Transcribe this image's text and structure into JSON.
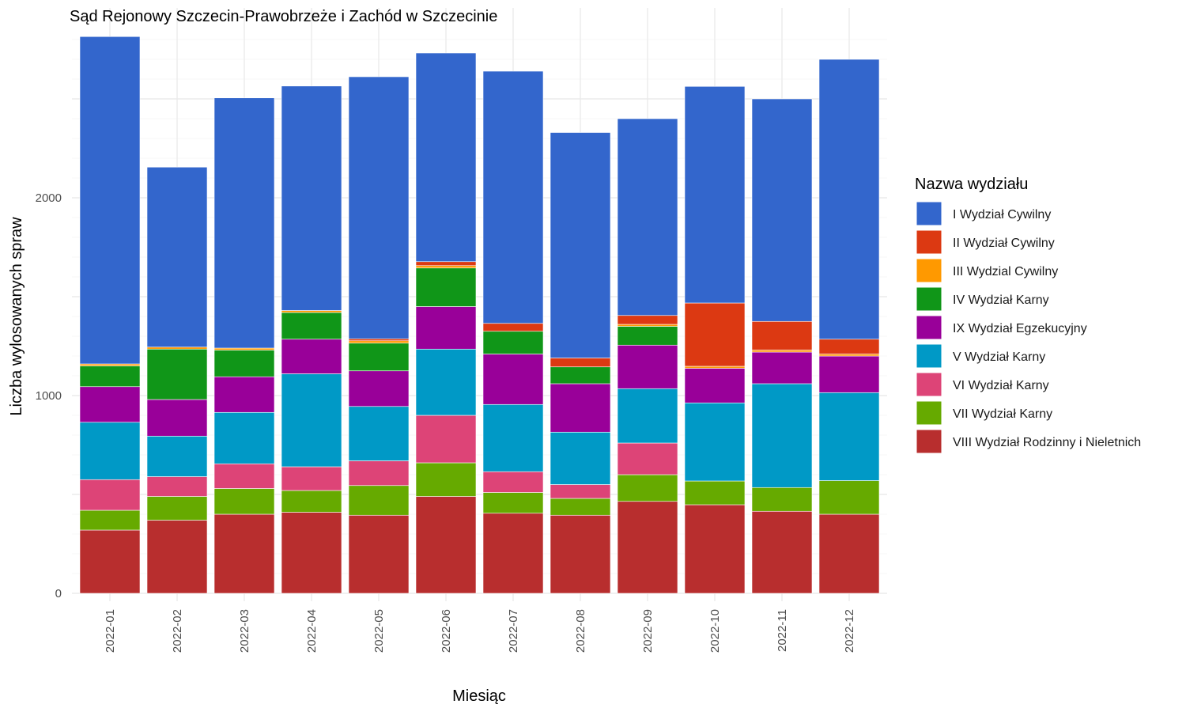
{
  "chart_data": {
    "type": "bar",
    "stacked": true,
    "title": "Sąd Rejonowy Szczecin-Prawobrzeże i Zachód w Szczecinie",
    "xlabel": "Miesiąc",
    "ylabel": "Liczba wylosowanych spraw",
    "ylim": [
      0,
      2820
    ],
    "yticks": [
      0,
      1000,
      2000
    ],
    "grid": true,
    "legend_title": "Nazwa wydziału",
    "legend_position": "right",
    "categories": [
      "2022-01",
      "2022-02",
      "2022-03",
      "2022-04",
      "2022-05",
      "2022-06",
      "2022-07",
      "2022-08",
      "2022-09",
      "2022-10",
      "2022-11",
      "2022-12"
    ],
    "series": [
      {
        "name": "VIII Wydział Rodzinny i Nieletnich",
        "color": "#b82e2e",
        "values": [
          320,
          370,
          400,
          410,
          395,
          490,
          405,
          395,
          465,
          448,
          415,
          400
        ]
      },
      {
        "name": "VII Wydział Karny",
        "color": "#66aa00",
        "values": [
          100,
          120,
          130,
          110,
          150,
          170,
          105,
          85,
          135,
          120,
          120,
          170
        ]
      },
      {
        "name": "VI Wydział Karny",
        "color": "#dd4477",
        "values": [
          155,
          100,
          125,
          120,
          125,
          240,
          105,
          70,
          160,
          0,
          0,
          0
        ]
      },
      {
        "name": "V Wydział Karny",
        "color": "#0099c6",
        "values": [
          290,
          205,
          260,
          470,
          275,
          335,
          340,
          265,
          275,
          395,
          525,
          445
        ]
      },
      {
        "name": "IX Wydział Egzekucyjny",
        "color": "#990099",
        "values": [
          180,
          185,
          180,
          175,
          180,
          215,
          255,
          245,
          220,
          175,
          160,
          185
        ]
      },
      {
        "name": "IV Wydział Karny",
        "color": "#109618",
        "values": [
          105,
          255,
          135,
          135,
          140,
          195,
          115,
          85,
          95,
          0,
          0,
          0
        ]
      },
      {
        "name": "III Wydzial Cywilny",
        "color": "#ff9900",
        "values": [
          10,
          10,
          10,
          10,
          12,
          12,
          0,
          0,
          10,
          10,
          10,
          10
        ]
      },
      {
        "name": "II Wydział Cywilny",
        "color": "#dc3912",
        "values": [
          0,
          0,
          0,
          0,
          10,
          20,
          40,
          45,
          45,
          320,
          145,
          75
        ]
      },
      {
        "name": "I Wydział Cywilny",
        "color": "#3366cc",
        "values": [
          1655,
          910,
          1265,
          1135,
          1325,
          1055,
          1275,
          1140,
          995,
          1095,
          1125,
          1415
        ]
      }
    ]
  }
}
